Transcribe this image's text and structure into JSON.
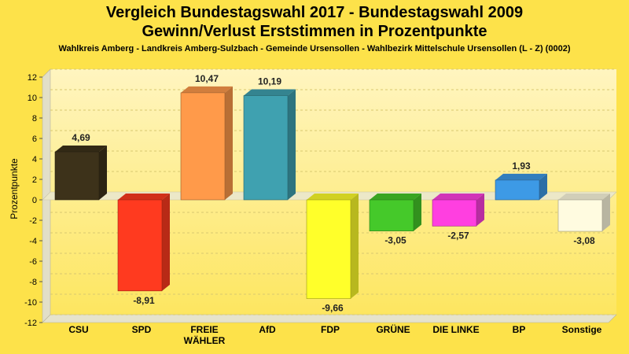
{
  "chart_data": {
    "type": "bar",
    "title": "Vergleich Bundestagswahl 2017 - Bundestagswahl 2009",
    "subtitle": "Gewinn/Verlust Erststimmen in Prozentpunkte",
    "caption": "Wahlkreis Amberg - Landkreis Amberg-Sulzbach - Gemeinde Ursensollen - Wahlbezirk Mittelschule Ursensollen (L - Z) (0002)",
    "ylabel": "Prozentpunkte",
    "xlabel": "",
    "ylim": [
      -12,
      12
    ],
    "yticks": [
      "-12",
      "-10",
      "-8",
      "-6",
      "-4",
      "-2",
      "0",
      "2",
      "4",
      "6",
      "8",
      "10",
      "12"
    ],
    "grid": true,
    "legend": "none",
    "categories": [
      {
        "lines": [
          "CSU"
        ]
      },
      {
        "lines": [
          "SPD"
        ]
      },
      {
        "lines": [
          "FREIE",
          "WÄHLER"
        ]
      },
      {
        "lines": [
          "AfD"
        ]
      },
      {
        "lines": [
          "FDP"
        ]
      },
      {
        "lines": [
          "GRÜNE"
        ]
      },
      {
        "lines": [
          "DIE LINKE"
        ]
      },
      {
        "lines": [
          "BP"
        ]
      },
      {
        "lines": [
          "Sonstige"
        ]
      }
    ],
    "values": [
      4.69,
      -8.91,
      10.47,
      10.19,
      -9.66,
      -3.05,
      -2.57,
      1.93,
      -3.08
    ],
    "value_labels": [
      "4,69",
      "-8,91",
      "10,47",
      "10,19",
      "-9,66",
      "-3,05",
      "-2,57",
      "1,93",
      "-3,08"
    ],
    "colors": [
      "#3d321a",
      "#ff3a1f",
      "#ff9a4a",
      "#3fa1b0",
      "#ffff2a",
      "#45c92a",
      "#ff3fe0",
      "#3d9ae6",
      "#fffbe0"
    ]
  }
}
